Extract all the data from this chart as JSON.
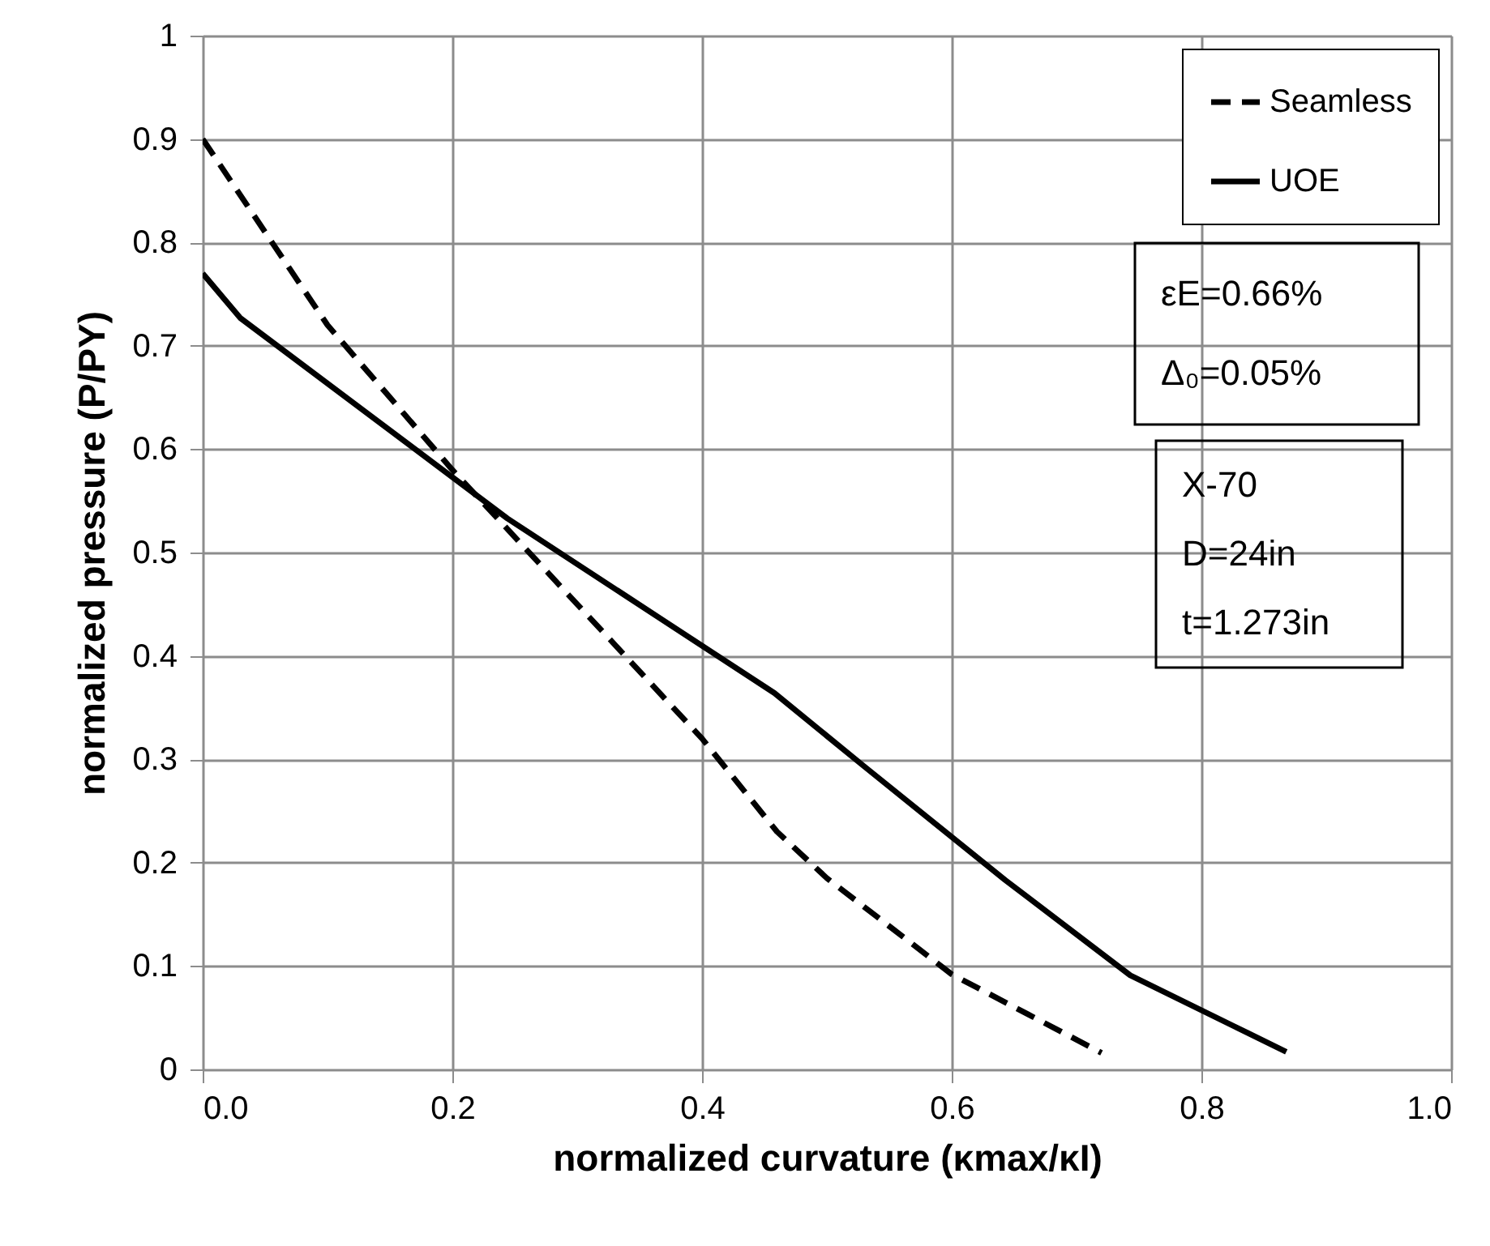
{
  "chart_data": {
    "type": "line",
    "xlabel": "normalized curvature  (κmax/κI)",
    "ylabel": "normalized pressure (P/PY)",
    "series": [
      {
        "name": "Seamless",
        "color": "#000000",
        "line_style": "dashed",
        "x": [
          0,
          0.1,
          0.2,
          0.3,
          0.4,
          0.46,
          0.5,
          0.6,
          0.72
        ],
        "values": [
          0.9,
          0.72,
          0.58,
          0.45,
          0.32,
          0.23,
          0.185,
          0.092,
          0.016
        ]
      },
      {
        "name": "UOE",
        "color": "#000000",
        "line_style": "solid",
        "x": [
          0,
          0.03,
          0.244,
          0.458,
          0.53,
          0.643,
          0.743,
          0.868
        ],
        "values": [
          0.77,
          0.727,
          0.533,
          0.364,
          0.293,
          0.183,
          0.091,
          0.017
        ]
      }
    ],
    "xlim": [
      0,
      1
    ],
    "xticks": [
      {
        "value": 0,
        "label": "0.0"
      },
      {
        "value": 0.2,
        "label": "0.2"
      },
      {
        "value": 0.4,
        "label": "0.4"
      },
      {
        "value": 0.6,
        "label": "0.6"
      },
      {
        "value": 0.8,
        "label": "0.8"
      },
      {
        "value": 1,
        "label": "1.0"
      }
    ],
    "ylim": [
      0,
      1
    ],
    "yticks": [
      0,
      0.1,
      0.2,
      0.3,
      0.4,
      0.5,
      0.6,
      0.7,
      0.8,
      0.9,
      1
    ],
    "grid": true,
    "legend": "top right",
    "marker": "none",
    "annotations": [
      "εE=0.66%",
      "Δ₀=0.05%",
      "X-70",
      "D=24in",
      "t=1.273in"
    ]
  }
}
